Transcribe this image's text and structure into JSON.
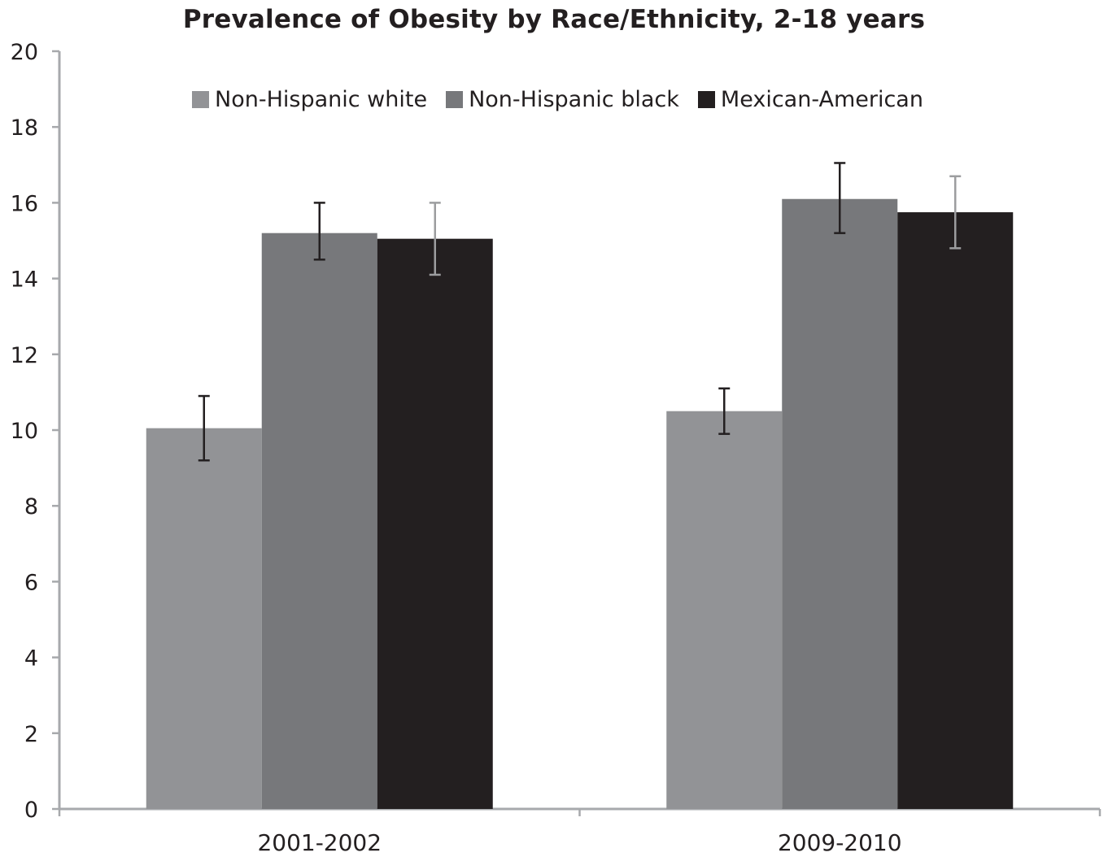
{
  "chart_data": {
    "type": "bar",
    "title": "Prevalence of Obesity by Race/Ethnicity, 2-18 years",
    "xlabel": "",
    "ylabel": "",
    "ylim": [
      0,
      20
    ],
    "yticks": [
      0,
      2,
      4,
      6,
      8,
      10,
      12,
      14,
      16,
      18,
      20
    ],
    "categories": [
      "2001-2002",
      "2009-2010"
    ],
    "series": [
      {
        "name": "Non-Hispanic white",
        "color": "#929396",
        "values": [
          10.05,
          10.5
        ],
        "err_low": [
          9.2,
          9.9
        ],
        "err_high": [
          10.9,
          11.1
        ]
      },
      {
        "name": "Non-Hispanic black",
        "color": "#77787b",
        "values": [
          15.2,
          16.1
        ],
        "err_low": [
          14.5,
          15.2
        ],
        "err_high": [
          16.0,
          17.05
        ]
      },
      {
        "name": "Mexican-American",
        "color": "#231f20",
        "values": [
          15.05,
          15.75
        ],
        "err_low": [
          14.1,
          14.8
        ],
        "err_high": [
          16.0,
          16.7
        ]
      }
    ],
    "legend_position": "top",
    "grid": false
  }
}
